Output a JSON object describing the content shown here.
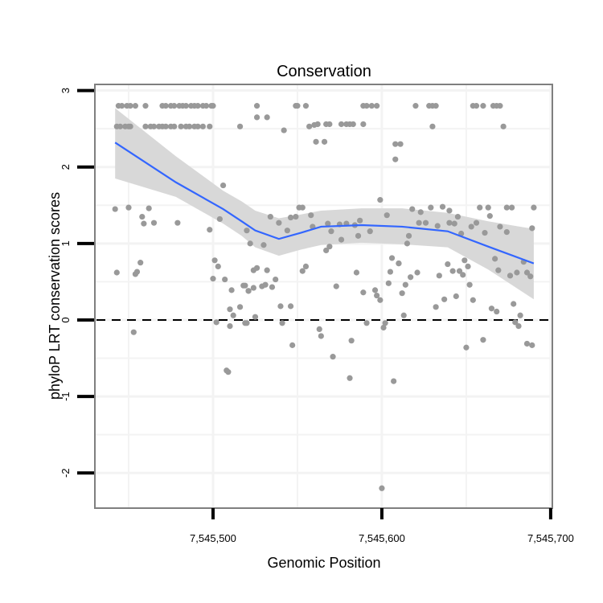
{
  "chart_data": {
    "type": "scatter",
    "title": "Conservation",
    "xlabel": "Genomic Position",
    "ylabel": "phyloP LRT conservation scores",
    "xlim": [
      7545430,
      7545701
    ],
    "ylim": [
      -2.46,
      3.08
    ],
    "x_ticks": [
      7545500,
      7545600,
      7545700
    ],
    "x_tick_labels": [
      "7,545,500",
      "7,545,600",
      "7,545,700"
    ],
    "y_ticks": [
      3,
      2,
      1,
      0,
      -1,
      -2
    ],
    "y_tick_labels": [
      "3",
      "2",
      "1",
      "0",
      "-1",
      "-2"
    ],
    "grid": true,
    "reference_line": {
      "y": 0,
      "style": "dashed",
      "color": "#000000"
    },
    "colors": {
      "points": "#999999",
      "smooth": "#3366ff",
      "band": "#d6d6d6",
      "panel_border": "#7f7f7f",
      "grid": "#f3f3f3"
    },
    "points": [
      [
        7545444,
        2.8
      ],
      [
        7545446,
        2.8
      ],
      [
        7545449,
        2.8
      ],
      [
        7545451,
        2.8
      ],
      [
        7545454,
        2.8
      ],
      [
        7545460,
        2.8
      ],
      [
        7545470,
        2.8
      ],
      [
        7545472,
        2.8
      ],
      [
        7545475,
        2.8
      ],
      [
        7545477,
        2.8
      ],
      [
        7545480,
        2.8
      ],
      [
        7545482,
        2.8
      ],
      [
        7545484,
        2.8
      ],
      [
        7545487,
        2.8
      ],
      [
        7545489,
        2.8
      ],
      [
        7545491,
        2.8
      ],
      [
        7545494,
        2.8
      ],
      [
        7545496,
        2.8
      ],
      [
        7545499,
        2.8
      ],
      [
        7545500,
        2.8
      ],
      [
        7545526,
        2.8
      ],
      [
        7545549,
        2.8
      ],
      [
        7545550,
        2.8
      ],
      [
        7545555,
        2.8
      ],
      [
        7545589,
        2.8
      ],
      [
        7545591,
        2.8
      ],
      [
        7545594,
        2.8
      ],
      [
        7545597,
        2.8
      ],
      [
        7545620,
        2.8
      ],
      [
        7545628,
        2.8
      ],
      [
        7545630,
        2.8
      ],
      [
        7545632,
        2.8
      ],
      [
        7545654,
        2.8
      ],
      [
        7545656,
        2.8
      ],
      [
        7545660,
        2.8
      ],
      [
        7545666,
        2.8
      ],
      [
        7545668,
        2.8
      ],
      [
        7545670,
        2.8
      ],
      [
        7545443,
        2.53
      ],
      [
        7545445,
        2.53
      ],
      [
        7545448,
        2.53
      ],
      [
        7545450,
        2.53
      ],
      [
        7545451,
        2.53
      ],
      [
        7545460,
        2.53
      ],
      [
        7545463,
        2.53
      ],
      [
        7545465,
        2.53
      ],
      [
        7545468,
        2.53
      ],
      [
        7545470,
        2.53
      ],
      [
        7545472,
        2.53
      ],
      [
        7545475,
        2.53
      ],
      [
        7545477,
        2.53
      ],
      [
        7545481,
        2.53
      ],
      [
        7545484,
        2.53
      ],
      [
        7545486,
        2.53
      ],
      [
        7545489,
        2.53
      ],
      [
        7545491,
        2.53
      ],
      [
        7545494,
        2.53
      ],
      [
        7545498,
        2.53
      ],
      [
        7545516,
        2.53
      ],
      [
        7545557,
        2.53
      ],
      [
        7545560,
        2.55
      ],
      [
        7545562,
        2.56
      ],
      [
        7545567,
        2.56
      ],
      [
        7545569,
        2.56
      ],
      [
        7545576,
        2.56
      ],
      [
        7545579,
        2.56
      ],
      [
        7545581,
        2.56
      ],
      [
        7545583,
        2.56
      ],
      [
        7545589,
        2.56
      ],
      [
        7545630,
        2.53
      ],
      [
        7545672,
        2.53
      ],
      [
        7545526,
        2.65
      ],
      [
        7545532,
        2.65
      ],
      [
        7545542,
        2.48
      ],
      [
        7545561,
        2.33
      ],
      [
        7545566,
        2.33
      ],
      [
        7545608,
        2.3
      ],
      [
        7545611,
        2.3
      ],
      [
        7545608,
        2.1
      ],
      [
        7545599,
        1.57
      ],
      [
        7545506,
        1.76
      ],
      [
        7545442,
        1.45
      ],
      [
        7545450,
        1.47
      ],
      [
        7545462,
        1.46
      ],
      [
        7545458,
        1.35
      ],
      [
        7545459,
        1.26
      ],
      [
        7545465,
        1.27
      ],
      [
        7545479,
        1.27
      ],
      [
        7545498,
        1.18
      ],
      [
        7545504,
        1.32
      ],
      [
        7545520,
        1.17
      ],
      [
        7545522,
        1.0
      ],
      [
        7545457,
        0.75
      ],
      [
        7545443,
        0.62
      ],
      [
        7545454,
        0.6
      ],
      [
        7545455,
        0.63
      ],
      [
        7545501,
        0.78
      ],
      [
        7545503,
        0.7
      ],
      [
        7545500,
        0.54
      ],
      [
        7545507,
        0.53
      ],
      [
        7545511,
        0.39
      ],
      [
        7545519,
        0.45
      ],
      [
        7545521,
        0.38
      ],
      [
        7545510,
        0.14
      ],
      [
        7545516,
        0.17
      ],
      [
        7545512,
        0.06
      ],
      [
        7545502,
        -0.03
      ],
      [
        7545510,
        -0.08
      ],
      [
        7545520,
        -0.04
      ],
      [
        7545453,
        -0.16
      ],
      [
        7545508,
        -0.66
      ],
      [
        7545509,
        -0.68
      ],
      [
        7545530,
        0.98
      ],
      [
        7545534,
        1.35
      ],
      [
        7545539,
        1.27
      ],
      [
        7545544,
        1.17
      ],
      [
        7545546,
        1.34
      ],
      [
        7545549,
        1.35
      ],
      [
        7545551,
        1.47
      ],
      [
        7545553,
        1.47
      ],
      [
        7545558,
        1.37
      ],
      [
        7545559,
        1.22
      ],
      [
        7545568,
        1.26
      ],
      [
        7545570,
        1.16
      ],
      [
        7545576,
        1.05
      ],
      [
        7545569,
        0.96
      ],
      [
        7545567,
        0.91
      ],
      [
        7545575,
        1.25
      ],
      [
        7545579,
        1.26
      ],
      [
        7545584,
        1.24
      ],
      [
        7545587,
        1.3
      ],
      [
        7545593,
        1.16
      ],
      [
        7545586,
        1.1
      ],
      [
        7545603,
        1.37
      ],
      [
        7545606,
        0.81
      ],
      [
        7545610,
        0.74
      ],
      [
        7545605,
        0.63
      ],
      [
        7545604,
        0.48
      ],
      [
        7545585,
        0.62
      ],
      [
        7545573,
        0.44
      ],
      [
        7545553,
        0.64
      ],
      [
        7545555,
        0.7
      ],
      [
        7545524,
        0.65
      ],
      [
        7545526,
        0.68
      ],
      [
        7545532,
        0.65
      ],
      [
        7545518,
        0.45
      ],
      [
        7545521,
        0.38
      ],
      [
        7545524,
        0.42
      ],
      [
        7545529,
        0.44
      ],
      [
        7545531,
        0.46
      ],
      [
        7545535,
        0.43
      ],
      [
        7545537,
        0.53
      ],
      [
        7545540,
        0.18
      ],
      [
        7545546,
        0.18
      ],
      [
        7545589,
        0.36
      ],
      [
        7545596,
        0.39
      ],
      [
        7545597,
        0.32
      ],
      [
        7545599,
        0.26
      ],
      [
        7545525,
        0.04
      ],
      [
        7545519,
        -0.04
      ],
      [
        7545541,
        -0.04
      ],
      [
        7545591,
        -0.04
      ],
      [
        7545602,
        -0.04
      ],
      [
        7545601,
        -0.1
      ],
      [
        7545563,
        -0.12
      ],
      [
        7545564,
        -0.21
      ],
      [
        7545547,
        -0.33
      ],
      [
        7545582,
        -0.27
      ],
      [
        7545571,
        -0.48
      ],
      [
        7545581,
        -0.76
      ],
      [
        7545607,
        -0.8
      ],
      [
        7545600,
        -2.2
      ],
      [
        7545618,
        1.45
      ],
      [
        7545623,
        1.41
      ],
      [
        7545629,
        1.47
      ],
      [
        7545636,
        1.48
      ],
      [
        7545640,
        1.43
      ],
      [
        7545645,
        1.35
      ],
      [
        7545622,
        1.27
      ],
      [
        7545626,
        1.27
      ],
      [
        7545633,
        1.23
      ],
      [
        7545640,
        1.27
      ],
      [
        7545643,
        1.26
      ],
      [
        7545647,
        1.13
      ],
      [
        7545653,
        1.22
      ],
      [
        7545656,
        1.27
      ],
      [
        7545661,
        1.14
      ],
      [
        7545658,
        1.47
      ],
      [
        7545663,
        1.47
      ],
      [
        7545664,
        1.36
      ],
      [
        7545674,
        1.47
      ],
      [
        7545677,
        1.47
      ],
      [
        7545690,
        1.47
      ],
      [
        7545670,
        1.22
      ],
      [
        7545674,
        1.15
      ],
      [
        7545689,
        1.2
      ],
      [
        7545616,
        1.1
      ],
      [
        7545615,
        1.0
      ],
      [
        7545610,
        0.74
      ],
      [
        7545617,
        0.56
      ],
      [
        7545621,
        0.62
      ],
      [
        7545614,
        0.46
      ],
      [
        7545612,
        0.35
      ],
      [
        7545634,
        0.58
      ],
      [
        7545639,
        0.73
      ],
      [
        7545642,
        0.64
      ],
      [
        7545646,
        0.64
      ],
      [
        7545648,
        0.59
      ],
      [
        7545649,
        0.78
      ],
      [
        7545651,
        0.7
      ],
      [
        7545652,
        0.46
      ],
      [
        7545654,
        0.26
      ],
      [
        7545644,
        0.31
      ],
      [
        7545637,
        0.27
      ],
      [
        7545632,
        0.17
      ],
      [
        7545667,
        0.8
      ],
      [
        7545669,
        0.65
      ],
      [
        7545676,
        0.58
      ],
      [
        7545680,
        0.62
      ],
      [
        7545684,
        0.76
      ],
      [
        7545686,
        0.62
      ],
      [
        7545688,
        0.57
      ],
      [
        7545665,
        0.15
      ],
      [
        7545668,
        0.11
      ],
      [
        7545678,
        0.21
      ],
      [
        7545682,
        0.06
      ],
      [
        7545613,
        0.06
      ],
      [
        7545679,
        -0.03
      ],
      [
        7545681,
        -0.08
      ],
      [
        7545660,
        -0.26
      ],
      [
        7545650,
        -0.36
      ],
      [
        7545686,
        -0.31
      ],
      [
        7545689,
        -0.33
      ]
    ],
    "smooth": {
      "x": [
        7545442,
        7545478,
        7545506,
        7545517,
        7545525,
        7545539,
        7545552,
        7545564,
        7545588,
        7545612,
        7545639,
        7545663,
        7545690
      ],
      "y": [
        2.32,
        1.8,
        1.45,
        1.29,
        1.17,
        1.06,
        1.14,
        1.22,
        1.24,
        1.22,
        1.16,
        0.96,
        0.74
      ],
      "upper": [
        2.77,
        2.14,
        1.69,
        1.55,
        1.43,
        1.33,
        1.38,
        1.43,
        1.46,
        1.46,
        1.4,
        1.29,
        1.19
      ],
      "lower": [
        1.85,
        1.61,
        1.26,
        1.1,
        0.95,
        0.84,
        0.92,
        0.98,
        1.01,
        0.99,
        0.95,
        0.66,
        0.27
      ]
    }
  }
}
